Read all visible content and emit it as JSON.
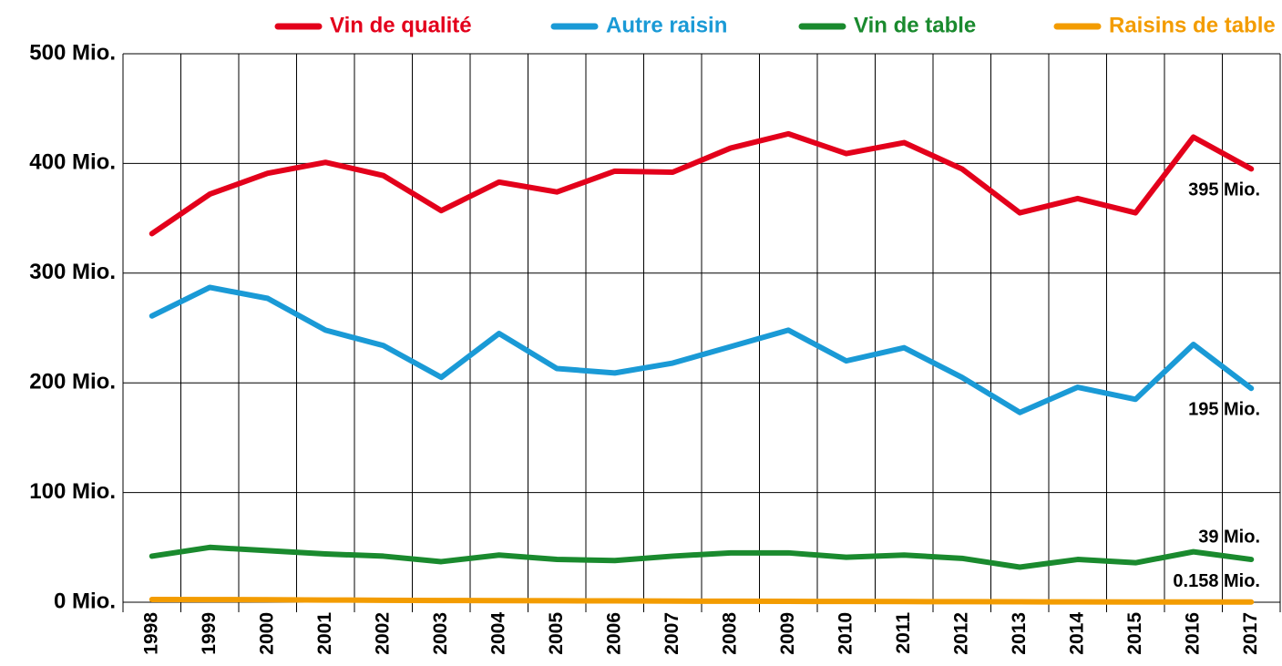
{
  "chart_data": {
    "type": "line",
    "categories": [
      "1998",
      "1999",
      "2000",
      "2001",
      "2002",
      "2003",
      "2004",
      "2005",
      "2006",
      "2007",
      "2008",
      "2009",
      "2010",
      "2011",
      "2012",
      "2013",
      "2014",
      "2015",
      "2016",
      "2017"
    ],
    "ylim": [
      0,
      500
    ],
    "yticks": [
      {
        "value": 0,
        "label": "0 Mio."
      },
      {
        "value": 100,
        "label": "100 Mio."
      },
      {
        "value": 200,
        "label": "200 Mio."
      },
      {
        "value": 300,
        "label": "300 Mio."
      },
      {
        "value": 400,
        "label": "400 Mio."
      },
      {
        "value": 500,
        "label": "500 Mio."
      }
    ],
    "grid": true,
    "legend": "top",
    "series": [
      {
        "name": "Vin de qualité",
        "color": "#e3001b",
        "values": [
          336,
          372,
          391,
          401,
          389,
          357,
          383,
          374,
          393,
          392,
          414,
          427,
          409,
          419,
          395,
          355,
          368,
          355,
          424,
          395
        ],
        "value_labels": [
          null,
          null,
          null,
          null,
          null,
          null,
          null,
          null,
          null,
          null,
          null,
          null,
          null,
          null,
          null,
          null,
          null,
          null,
          null,
          "395 Mio."
        ]
      },
      {
        "name": "Autre raisin",
        "color": "#1a9ad6",
        "values": [
          261,
          287,
          277,
          248,
          234,
          205,
          245,
          213,
          209,
          218,
          233,
          248,
          220,
          232,
          205,
          173,
          196,
          185,
          235,
          195
        ],
        "value_labels": [
          null,
          null,
          null,
          null,
          null,
          null,
          null,
          null,
          null,
          null,
          null,
          null,
          null,
          null,
          null,
          null,
          null,
          null,
          null,
          "195 Mio."
        ]
      },
      {
        "name": "Vin de table",
        "color": "#1a8a2e",
        "values": [
          42,
          50,
          47,
          44,
          42,
          37,
          43,
          39,
          38,
          42,
          45,
          45,
          41,
          43,
          40,
          32,
          39,
          36,
          46,
          39
        ],
        "value_labels": [
          null,
          null,
          null,
          null,
          null,
          null,
          null,
          null,
          null,
          null,
          null,
          null,
          null,
          null,
          null,
          null,
          null,
          null,
          null,
          "39 Mio."
        ]
      },
      {
        "name": "Raisins de table",
        "color": "#f39c00",
        "values": [
          2.5,
          2.4,
          2.3,
          2,
          1.8,
          1.6,
          1.5,
          1.3,
          1.2,
          1,
          0.9,
          0.8,
          0.7,
          0.6,
          0.5,
          0.4,
          0.3,
          0.25,
          0.2,
          0.158
        ],
        "value_labels": [
          null,
          null,
          null,
          null,
          null,
          null,
          null,
          null,
          null,
          null,
          null,
          null,
          null,
          null,
          null,
          null,
          null,
          null,
          null,
          "0.158 Mio."
        ]
      }
    ]
  }
}
